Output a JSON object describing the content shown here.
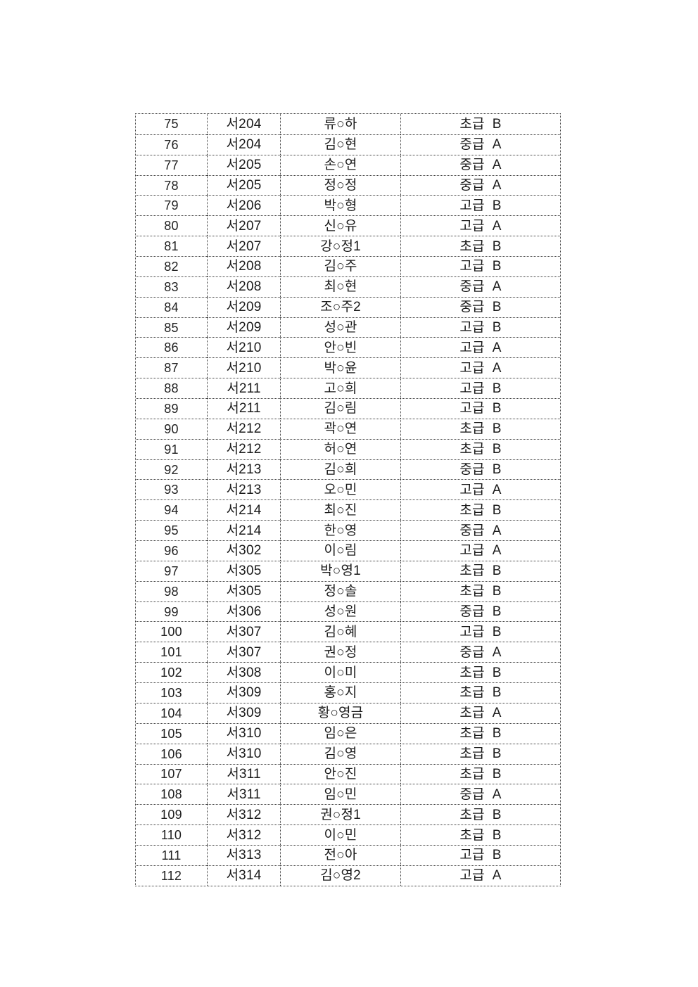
{
  "table": {
    "rows": [
      {
        "no": "75",
        "room": "서204",
        "name": "류○하",
        "level": "초급",
        "band": "B"
      },
      {
        "no": "76",
        "room": "서204",
        "name": "김○현",
        "level": "중급",
        "band": "A"
      },
      {
        "no": "77",
        "room": "서205",
        "name": "손○연",
        "level": "중급",
        "band": "A"
      },
      {
        "no": "78",
        "room": "서205",
        "name": "정○정",
        "level": "중급",
        "band": "A"
      },
      {
        "no": "79",
        "room": "서206",
        "name": "박○형",
        "level": "고급",
        "band": "B"
      },
      {
        "no": "80",
        "room": "서207",
        "name": "신○유",
        "level": "고급",
        "band": "A"
      },
      {
        "no": "81",
        "room": "서207",
        "name": "강○정1",
        "level": "초급",
        "band": "B"
      },
      {
        "no": "82",
        "room": "서208",
        "name": "김○주",
        "level": "고급",
        "band": "B"
      },
      {
        "no": "83",
        "room": "서208",
        "name": "최○현",
        "level": "중급",
        "band": "A"
      },
      {
        "no": "84",
        "room": "서209",
        "name": "조○주2",
        "level": "중급",
        "band": "B"
      },
      {
        "no": "85",
        "room": "서209",
        "name": "성○관",
        "level": "고급",
        "band": "B"
      },
      {
        "no": "86",
        "room": "서210",
        "name": "안○빈",
        "level": "고급",
        "band": "A"
      },
      {
        "no": "87",
        "room": "서210",
        "name": "박○윤",
        "level": "고급",
        "band": "A"
      },
      {
        "no": "88",
        "room": "서211",
        "name": "고○희",
        "level": "고급",
        "band": "B"
      },
      {
        "no": "89",
        "room": "서211",
        "name": "김○림",
        "level": "고급",
        "band": "B"
      },
      {
        "no": "90",
        "room": "서212",
        "name": "곽○연",
        "level": "초급",
        "band": "B"
      },
      {
        "no": "91",
        "room": "서212",
        "name": "허○연",
        "level": "초급",
        "band": "B"
      },
      {
        "no": "92",
        "room": "서213",
        "name": "김○희",
        "level": "중급",
        "band": "B"
      },
      {
        "no": "93",
        "room": "서213",
        "name": "오○민",
        "level": "고급",
        "band": "A"
      },
      {
        "no": "94",
        "room": "서214",
        "name": "최○진",
        "level": "초급",
        "band": "B"
      },
      {
        "no": "95",
        "room": "서214",
        "name": "한○영",
        "level": "중급",
        "band": "A"
      },
      {
        "no": "96",
        "room": "서302",
        "name": "이○림",
        "level": "고급",
        "band": "A"
      },
      {
        "no": "97",
        "room": "서305",
        "name": "박○영1",
        "level": "초급",
        "band": "B"
      },
      {
        "no": "98",
        "room": "서305",
        "name": "정○솔",
        "level": "초급",
        "band": "B"
      },
      {
        "no": "99",
        "room": "서306",
        "name": "성○원",
        "level": "중급",
        "band": "B"
      },
      {
        "no": "100",
        "room": "서307",
        "name": "김○혜",
        "level": "고급",
        "band": "B"
      },
      {
        "no": "101",
        "room": "서307",
        "name": "권○정",
        "level": "중급",
        "band": "A"
      },
      {
        "no": "102",
        "room": "서308",
        "name": "이○미",
        "level": "초급",
        "band": "B"
      },
      {
        "no": "103",
        "room": "서309",
        "name": "홍○지",
        "level": "초급",
        "band": "B"
      },
      {
        "no": "104",
        "room": "서309",
        "name": "황○영금",
        "level": "초급",
        "band": "A"
      },
      {
        "no": "105",
        "room": "서310",
        "name": "임○은",
        "level": "초급",
        "band": "B"
      },
      {
        "no": "106",
        "room": "서310",
        "name": "김○영",
        "level": "초급",
        "band": "B"
      },
      {
        "no": "107",
        "room": "서311",
        "name": "안○진",
        "level": "초급",
        "band": "B"
      },
      {
        "no": "108",
        "room": "서311",
        "name": "임○민",
        "level": "중급",
        "band": "A"
      },
      {
        "no": "109",
        "room": "서312",
        "name": "권○정1",
        "level": "초급",
        "band": "B"
      },
      {
        "no": "110",
        "room": "서312",
        "name": "이○민",
        "level": "초급",
        "band": "B"
      },
      {
        "no": "111",
        "room": "서313",
        "name": "전○아",
        "level": "고급",
        "band": "B"
      },
      {
        "no": "112",
        "room": "서314",
        "name": "김○영2",
        "level": "고급",
        "band": "A"
      }
    ]
  },
  "colors": {
    "page_background": "#ffffff",
    "text": "#1a1a1a",
    "table_border": "#3d3d3d"
  }
}
